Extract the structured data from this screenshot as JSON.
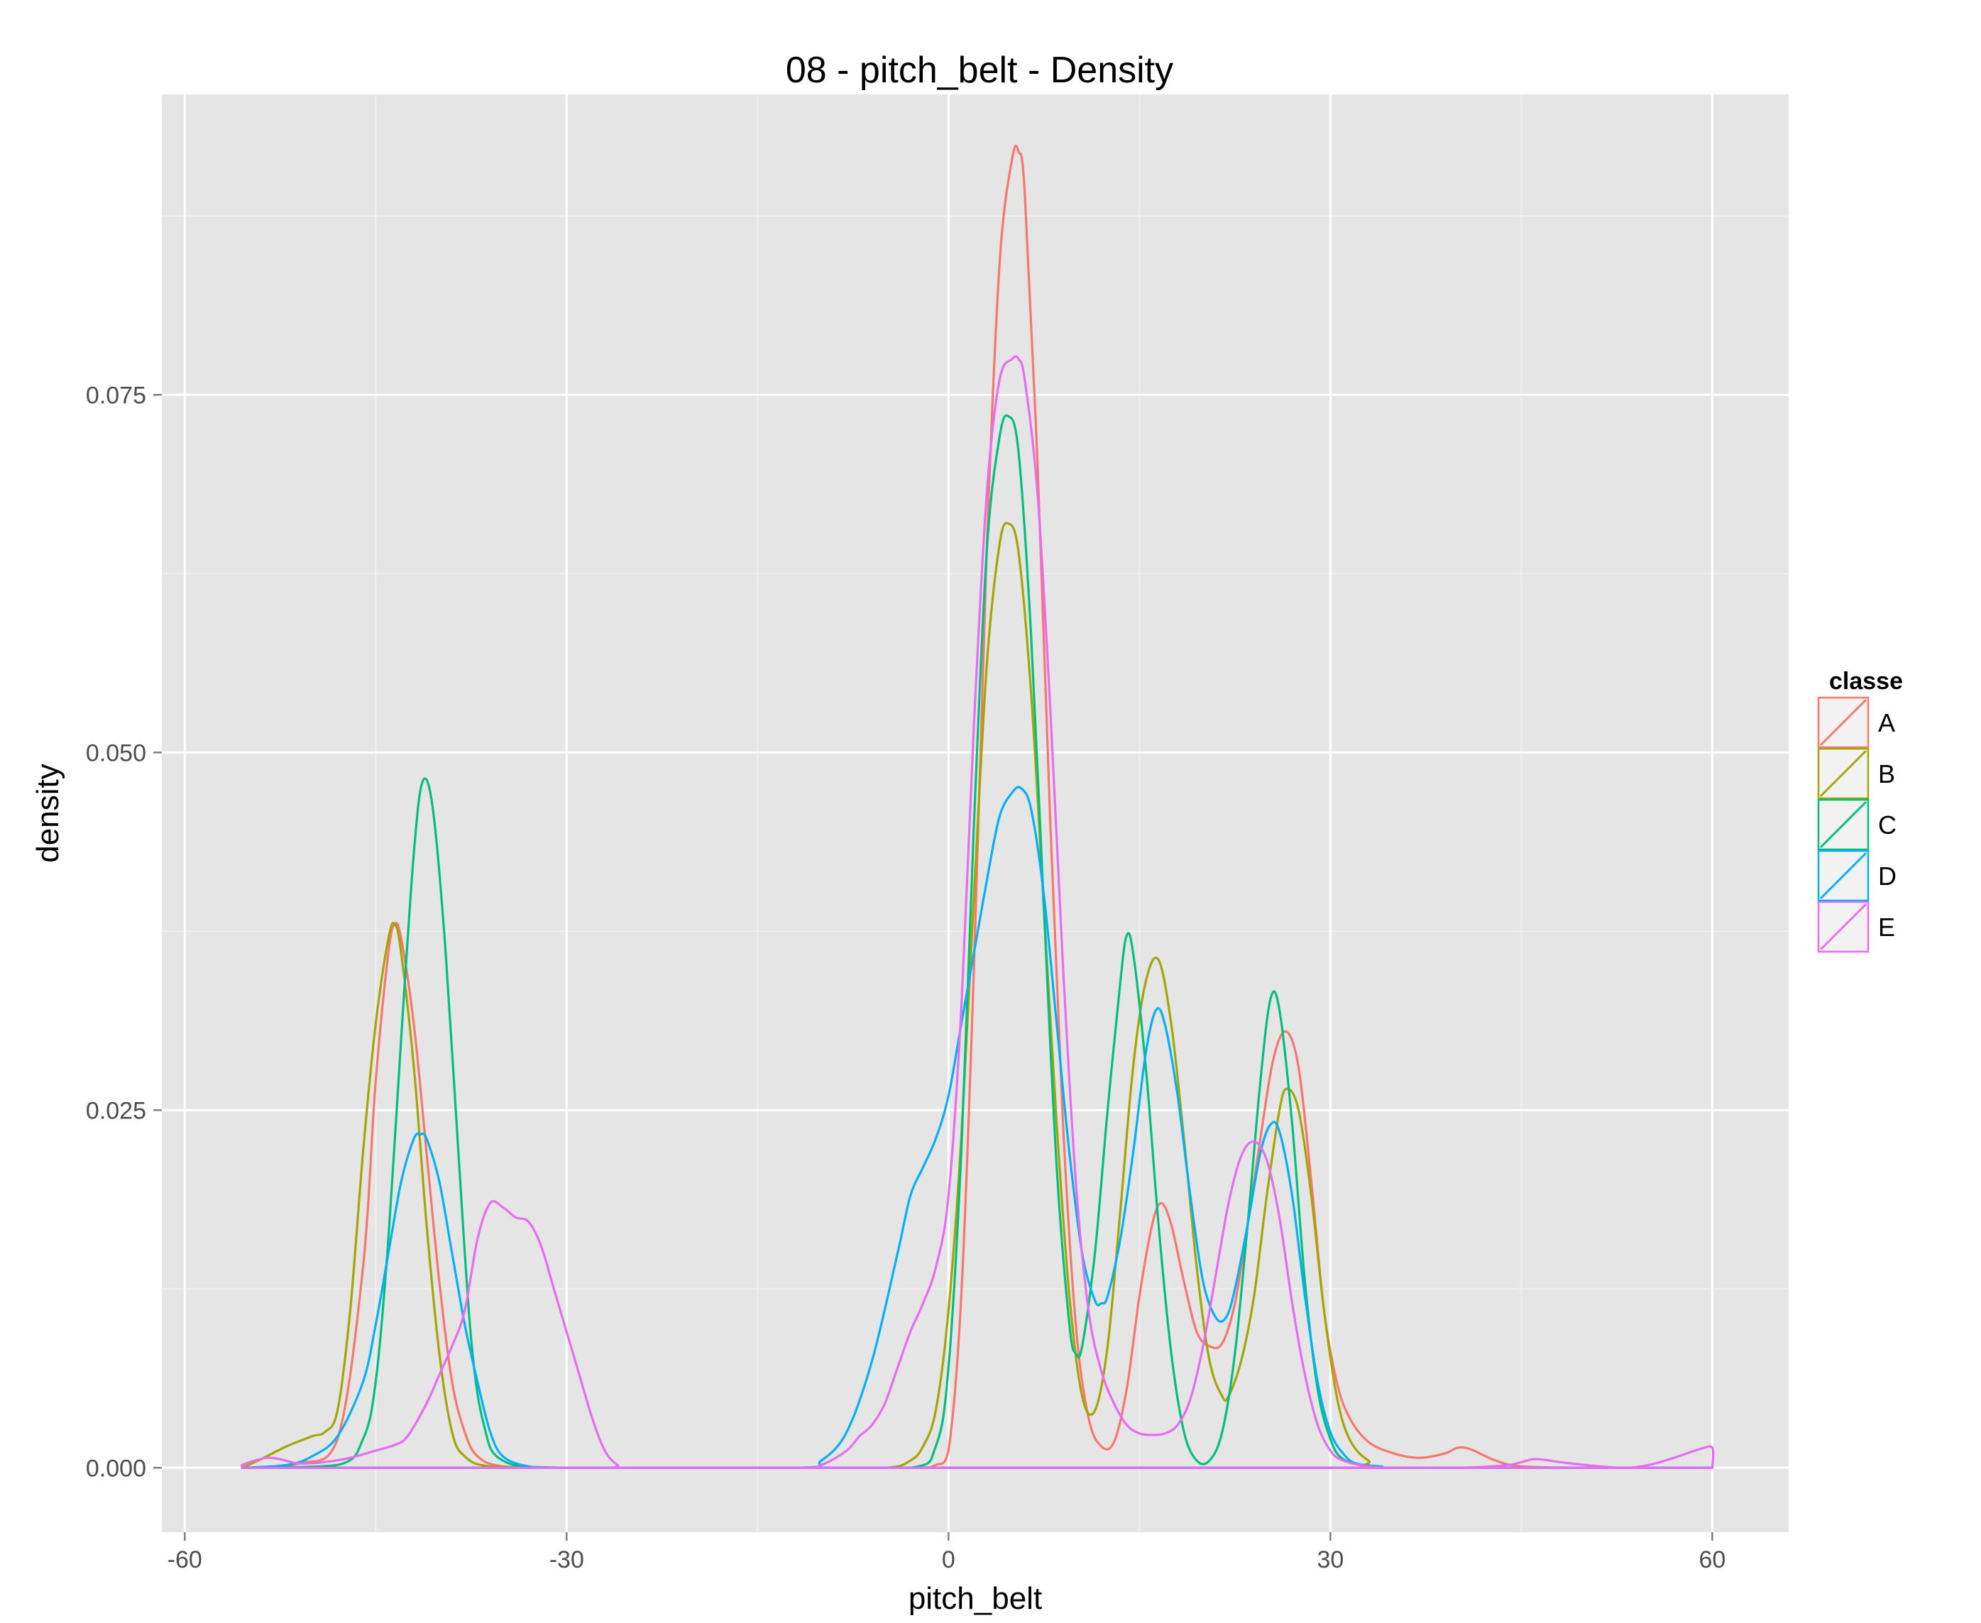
{
  "chart_data": {
    "type": "line",
    "title": "08 - pitch_belt - Density",
    "xlabel": "pitch_belt",
    "ylabel": "density",
    "xlim": [
      -61.8,
      66
    ],
    "ylim": [
      -0.0045,
      0.096
    ],
    "x_ticks": [
      -60,
      -30,
      0,
      30,
      60
    ],
    "x_tick_labels": [
      "-60",
      "-30",
      "0",
      "30",
      "60"
    ],
    "y_ticks": [
      0,
      0.025,
      0.05,
      0.075
    ],
    "y_tick_labels": [
      "0.000",
      "0.025",
      "0.050",
      "0.075"
    ],
    "grid": true,
    "legend": {
      "title": "classe",
      "position": "right"
    },
    "series": [
      {
        "name": "A",
        "color": "#F8766D",
        "x": [
          -55.5,
          -51,
          -48,
          -46,
          -45,
          -44,
          -43.5,
          -43,
          -42,
          -41,
          -40,
          -39,
          -38,
          -37,
          -35,
          -30,
          -12,
          -3,
          -1,
          0,
          1,
          2,
          3,
          4,
          5,
          5.5,
          6,
          7,
          8,
          9,
          10,
          11,
          12,
          13,
          14,
          15,
          16,
          16.7,
          17.5,
          18.5,
          19.5,
          20.5,
          21.5,
          22.5,
          23.5,
          24.5,
          25.5,
          26.5,
          27.5,
          28.5,
          29.5,
          30.5,
          31.5,
          33,
          35,
          37,
          39,
          40,
          41,
          43,
          45,
          50,
          55,
          60
        ],
        "y": [
          0,
          0.0003,
          0.002,
          0.014,
          0.027,
          0.036,
          0.038,
          0.037,
          0.031,
          0.022,
          0.013,
          0.006,
          0.0025,
          0.0008,
          0.0001,
          0,
          0,
          0,
          0.0002,
          0.0012,
          0.012,
          0.035,
          0.064,
          0.084,
          0.0915,
          0.092,
          0.089,
          0.07,
          0.045,
          0.024,
          0.01,
          0.0035,
          0.0015,
          0.0018,
          0.0055,
          0.012,
          0.017,
          0.0185,
          0.017,
          0.013,
          0.0095,
          0.0085,
          0.0087,
          0.0115,
          0.017,
          0.023,
          0.0285,
          0.0305,
          0.028,
          0.02,
          0.011,
          0.006,
          0.0035,
          0.0018,
          0.001,
          0.0007,
          0.001,
          0.0014,
          0.0013,
          0.0005,
          0.0001,
          0,
          0,
          0
        ]
      },
      {
        "name": "B",
        "color": "#A3A500",
        "x": [
          -55.5,
          -54,
          -52,
          -50,
          -49,
          -48,
          -47,
          -46,
          -45,
          -44,
          -43.5,
          -43,
          -42,
          -41,
          -40,
          -39,
          -38,
          -36,
          -30,
          -12,
          -5,
          -3,
          -2,
          -1,
          0,
          1,
          2,
          3,
          4,
          4.7,
          5.5,
          6.5,
          7.5,
          8.5,
          9.5,
          10.5,
          11.5,
          12.5,
          13.5,
          14.5,
          15.5,
          16.5,
          17.5,
          18.5,
          19.5,
          20.5,
          21.5,
          22,
          23,
          24,
          25,
          26,
          26.6,
          27.5,
          28.5,
          29.5,
          30.5,
          31.5,
          33,
          35,
          60
        ],
        "y": [
          0,
          0.0006,
          0.0015,
          0.0022,
          0.0025,
          0.004,
          0.011,
          0.022,
          0.031,
          0.037,
          0.038,
          0.036,
          0.028,
          0.017,
          0.008,
          0.0025,
          0.0008,
          0.0001,
          0,
          0,
          0,
          0.0005,
          0.0015,
          0.004,
          0.011,
          0.023,
          0.04,
          0.056,
          0.0645,
          0.066,
          0.064,
          0.054,
          0.039,
          0.024,
          0.012,
          0.005,
          0.004,
          0.0085,
          0.018,
          0.028,
          0.034,
          0.0355,
          0.031,
          0.023,
          0.014,
          0.0075,
          0.005,
          0.005,
          0.0075,
          0.012,
          0.019,
          0.025,
          0.0265,
          0.025,
          0.019,
          0.011,
          0.005,
          0.002,
          0.0005,
          0,
          0
        ]
      },
      {
        "name": "C",
        "color": "#00BF7D",
        "x": [
          -55.5,
          -48,
          -46,
          -45,
          -44,
          -43,
          -42,
          -41.3,
          -40.5,
          -39.5,
          -38.5,
          -37.5,
          -36.5,
          -35,
          -30,
          -12,
          -3,
          -1,
          0,
          1,
          2,
          3,
          4,
          4.7,
          5.5,
          6.5,
          7.5,
          8.5,
          9.5,
          10,
          10.5,
          11.5,
          12.5,
          13.5,
          14,
          14.5,
          15.5,
          16.5,
          17.5,
          18.5,
          19.5,
          20.5,
          21.5,
          22.5,
          23.5,
          24.5,
          25.3,
          26,
          27,
          28,
          29,
          30,
          31,
          33,
          35,
          60
        ],
        "y": [
          0,
          0.0002,
          0.002,
          0.006,
          0.016,
          0.03,
          0.043,
          0.048,
          0.046,
          0.036,
          0.022,
          0.009,
          0.003,
          0.0005,
          0,
          0,
          0,
          0.0015,
          0.007,
          0.022,
          0.045,
          0.064,
          0.072,
          0.0735,
          0.071,
          0.058,
          0.039,
          0.021,
          0.01,
          0.008,
          0.0085,
          0.015,
          0.025,
          0.034,
          0.0372,
          0.036,
          0.028,
          0.017,
          0.008,
          0.0025,
          0.0005,
          0.0005,
          0.0025,
          0.008,
          0.017,
          0.027,
          0.0328,
          0.032,
          0.024,
          0.013,
          0.0055,
          0.002,
          0.0006,
          0.0001,
          0,
          0
        ]
      },
      {
        "name": "D",
        "color": "#00B0F6",
        "x": [
          -55.5,
          -52,
          -50,
          -48,
          -46,
          -45,
          -44,
          -43,
          -42,
          -41.5,
          -41,
          -40,
          -39,
          -38,
          -37,
          -36,
          -35,
          -33,
          -30,
          -12,
          -10,
          -8,
          -6,
          -4,
          -3,
          -2,
          -1,
          0,
          1,
          2,
          3,
          4,
          5,
          5.7,
          6.5,
          7.5,
          8.5,
          9.5,
          10.5,
          11.5,
          12,
          12.5,
          13.5,
          14.5,
          15.5,
          16.3,
          17,
          18,
          19,
          20,
          21,
          21.8,
          22.5,
          23.5,
          24.5,
          25.3,
          26,
          27,
          28,
          29,
          30,
          31,
          32,
          34,
          36,
          60
        ],
        "y": [
          0,
          0.0002,
          0.0008,
          0.0022,
          0.006,
          0.01,
          0.015,
          0.02,
          0.023,
          0.0233,
          0.023,
          0.02,
          0.015,
          0.01,
          0.006,
          0.0025,
          0.0008,
          0.0001,
          0,
          0,
          0.0005,
          0.0025,
          0.0075,
          0.015,
          0.019,
          0.021,
          0.023,
          0.026,
          0.031,
          0.036,
          0.041,
          0.0455,
          0.0472,
          0.0475,
          0.046,
          0.04,
          0.031,
          0.022,
          0.015,
          0.0117,
          0.0115,
          0.012,
          0.016,
          0.022,
          0.029,
          0.032,
          0.031,
          0.026,
          0.019,
          0.013,
          0.0105,
          0.0105,
          0.0125,
          0.017,
          0.022,
          0.024,
          0.0235,
          0.019,
          0.012,
          0.006,
          0.0025,
          0.001,
          0.0003,
          0.0001,
          0,
          0
        ]
      },
      {
        "name": "E",
        "color": "#E76BF3",
        "x": [
          -55.5,
          -54.5,
          -53.5,
          -52.5,
          -51,
          -49,
          -47,
          -45,
          -43.5,
          -42.5,
          -41,
          -40,
          -39,
          -38,
          -37,
          -36,
          -35,
          -34,
          -33,
          -32,
          -31,
          -30,
          -29,
          -28,
          -27,
          -26,
          -25,
          -12,
          -10,
          -8,
          -7,
          -6,
          -5,
          -4,
          -3,
          -2,
          -1,
          0,
          1,
          2,
          3,
          4,
          5,
          5.5,
          6,
          7,
          8,
          9,
          10,
          11,
          12,
          13,
          14,
          15,
          16,
          17,
          18,
          19,
          20,
          21,
          22,
          23,
          24,
          25,
          26,
          27,
          28,
          29,
          30,
          31,
          33,
          35,
          40,
          44,
          46,
          48,
          50,
          53,
          55,
          57,
          59,
          60,
          60
        ],
        "y": [
          0.0002,
          0.0005,
          0.0007,
          0.0006,
          0.0003,
          0.0004,
          0.0007,
          0.0012,
          0.0016,
          0.0022,
          0.0045,
          0.0065,
          0.0085,
          0.011,
          0.016,
          0.0185,
          0.0182,
          0.0175,
          0.0172,
          0.0155,
          0.0125,
          0.0095,
          0.0065,
          0.0035,
          0.0012,
          0.0002,
          0,
          0,
          0.0002,
          0.0012,
          0.0022,
          0.003,
          0.0045,
          0.007,
          0.0095,
          0.0115,
          0.014,
          0.019,
          0.032,
          0.052,
          0.068,
          0.076,
          0.0775,
          0.0775,
          0.076,
          0.068,
          0.053,
          0.035,
          0.02,
          0.011,
          0.0068,
          0.0045,
          0.003,
          0.0024,
          0.0023,
          0.0024,
          0.003,
          0.0048,
          0.0085,
          0.0135,
          0.0185,
          0.0218,
          0.0228,
          0.0215,
          0.0175,
          0.0115,
          0.0065,
          0.003,
          0.0012,
          0.0005,
          0.0001,
          0,
          0,
          0.0002,
          0.0006,
          0.0004,
          0.0002,
          0,
          0.0002,
          0.0007,
          0.0013,
          0.0014,
          0
        ]
      }
    ]
  }
}
